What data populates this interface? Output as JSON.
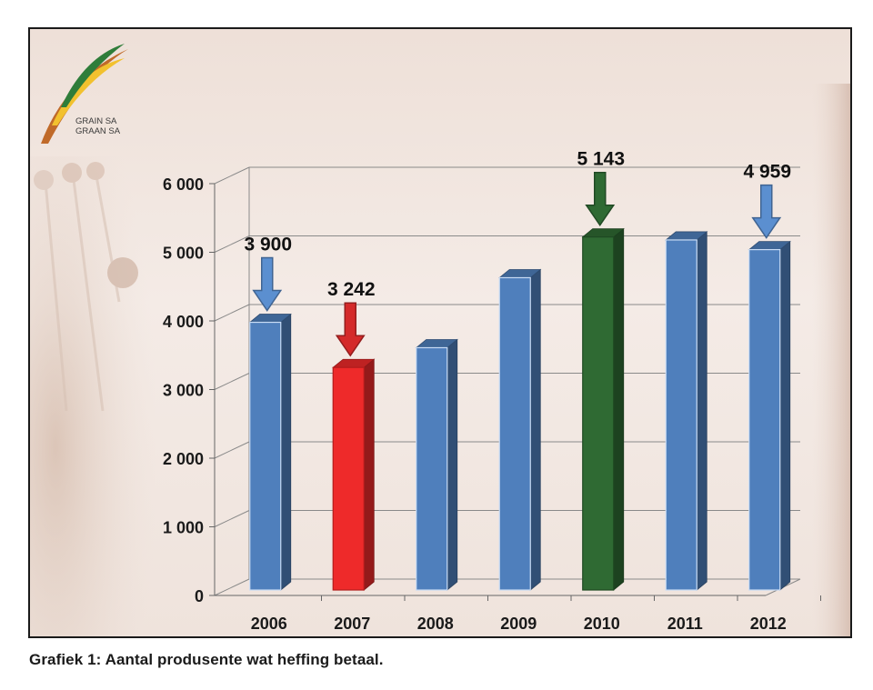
{
  "logo": {
    "line1": "GRAIN SA",
    "line2": "GRAAN SA"
  },
  "caption": "Grafiek 1: Aantal produsente wat heffing betaal.",
  "colors": {
    "default": "#4f7fbc",
    "highlight_low": "#ee2a2a",
    "highlight_high": "#2f6a33"
  },
  "chart_data": {
    "type": "bar",
    "categories": [
      "2006",
      "2007",
      "2008",
      "2009",
      "2010",
      "2011",
      "2012"
    ],
    "values": [
      3900,
      3242,
      3530,
      4550,
      5143,
      5100,
      4959
    ],
    "colors": [
      "#4f7fbc",
      "#ee2a2a",
      "#4f7fbc",
      "#4f7fbc",
      "#2f6a33",
      "#4f7fbc",
      "#4f7fbc"
    ],
    "ylim": [
      0,
      6000
    ],
    "yticks": [
      0,
      1000,
      2000,
      3000,
      4000,
      5000,
      6000
    ],
    "ytick_labels": [
      "0",
      "1 000",
      "2 000",
      "3 000",
      "4 000",
      "5 000",
      "6 000"
    ],
    "annotations": [
      {
        "category": "2006",
        "label": "3 900",
        "arrow_color": "#5b8fd0"
      },
      {
        "category": "2007",
        "label": "3 242",
        "arrow_color": "#d42a2a"
      },
      {
        "category": "2010",
        "label": "5 143",
        "arrow_color": "#2f6a33"
      },
      {
        "category": "2012",
        "label": "4 959",
        "arrow_color": "#5b8fd0"
      }
    ],
    "grid": true
  }
}
